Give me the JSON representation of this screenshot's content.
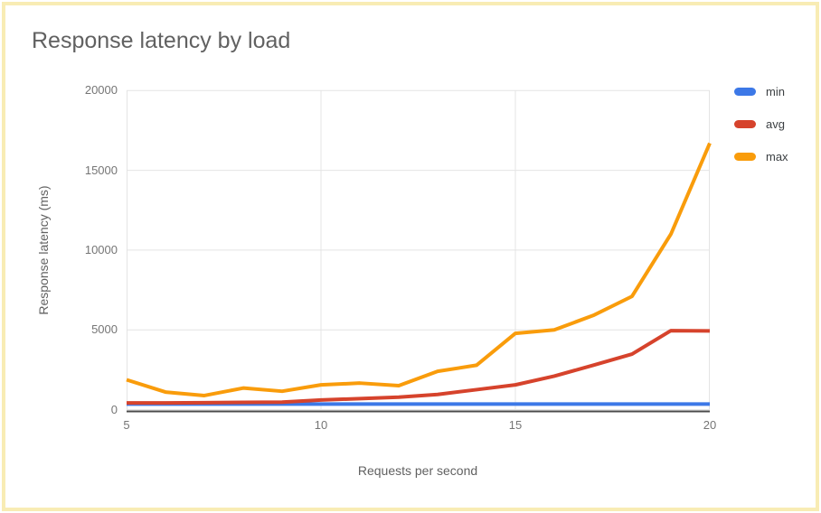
{
  "page": {
    "title": "Response latency by load",
    "border_color": "#f8ecb4"
  },
  "chart_data": {
    "type": "line",
    "title": "Response latency by load",
    "xlabel": "Requests per second",
    "ylabel": "Response latency (ms)",
    "xlim": [
      5,
      20
    ],
    "ylim": [
      0,
      20000
    ],
    "grid": true,
    "legend_position": "right",
    "xticks": [
      "5",
      "10",
      "15",
      "20"
    ],
    "xtick_values": [
      5,
      10,
      15,
      20
    ],
    "yticks": [
      "0",
      "5000",
      "10000",
      "15000",
      "20000"
    ],
    "ytick_values": [
      0,
      5000,
      10000,
      15000,
      20000
    ],
    "x": [
      5,
      6,
      7,
      8,
      9,
      10,
      11,
      12,
      13,
      14,
      15,
      16,
      17,
      18,
      19,
      20
    ],
    "series": [
      {
        "name": "min",
        "color": "#3c78e7",
        "values": [
          350,
          350,
          350,
          350,
          350,
          350,
          350,
          350,
          350,
          350,
          350,
          350,
          350,
          350,
          350,
          350
        ]
      },
      {
        "name": "avg",
        "color": "#d6432c",
        "values": [
          420,
          420,
          430,
          450,
          470,
          600,
          690,
          780,
          950,
          1250,
          1550,
          2100,
          2780,
          3480,
          4950,
          4930
        ]
      },
      {
        "name": "max",
        "color": "#f99c0b",
        "values": [
          1870,
          1100,
          880,
          1350,
          1150,
          1550,
          1660,
          1500,
          2400,
          2780,
          4780,
          5000,
          5900,
          7100,
          11000,
          16700
        ]
      }
    ],
    "style": {
      "grid_color": "#e4e4e4",
      "baseline_color": "#4a4a4a",
      "tick_color": "#757575",
      "line_width": 4
    }
  }
}
